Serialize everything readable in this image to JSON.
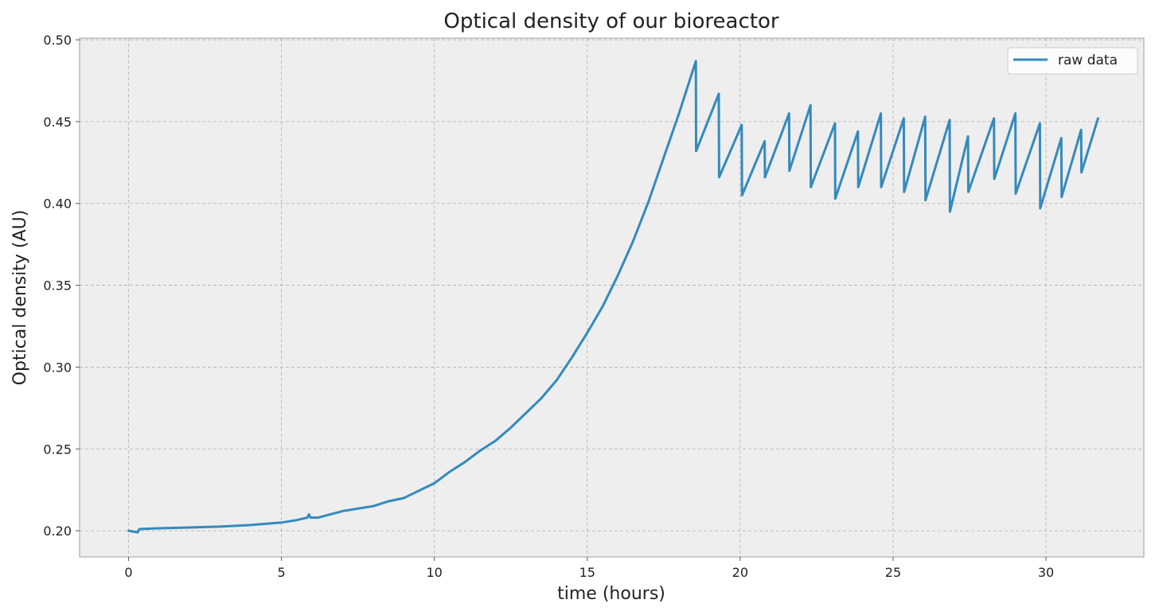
{
  "chart_data": {
    "type": "line",
    "title": "Optical density of our bioreactor",
    "xlabel": "time (hours)",
    "ylabel": "Optical density (AU)",
    "xlim": [
      -1.6,
      33.2
    ],
    "ylim": [
      0.184,
      0.501
    ],
    "xticks": [
      0,
      5,
      10,
      15,
      20,
      25,
      30
    ],
    "yticks": [
      0.2,
      0.25,
      0.3,
      0.35,
      0.4,
      0.45,
      0.5
    ],
    "xtick_labels": [
      "0",
      "5",
      "10",
      "15",
      "20",
      "25",
      "30"
    ],
    "ytick_labels": [
      "0.20",
      "0.25",
      "0.30",
      "0.35",
      "0.40",
      "0.45",
      "0.50"
    ],
    "grid": true,
    "legend_position": "top-right",
    "colors": {
      "series": "#348abd",
      "plot_background": "#eeeeee",
      "frame": "#bcbcbc"
    },
    "series": [
      {
        "name": "raw data",
        "x": [
          0,
          0.3,
          0.35,
          1,
          2,
          3,
          4,
          5,
          5.5,
          5.85,
          5.9,
          5.95,
          6.2,
          7,
          8,
          8.5,
          9,
          10,
          10.5,
          11,
          11.5,
          12,
          12.5,
          13,
          13.5,
          14,
          14.5,
          15,
          15.5,
          16,
          16.5,
          17,
          17.5,
          18,
          18.55,
          18.56,
          19.3,
          19.31,
          20.05,
          20.06,
          20.8,
          20.81,
          21.6,
          21.61,
          22.3,
          22.31,
          23.1,
          23.11,
          23.85,
          23.86,
          24.6,
          24.61,
          25.35,
          25.36,
          26.05,
          26.06,
          26.85,
          26.86,
          27.45,
          27.46,
          28.3,
          28.31,
          29.0,
          29.01,
          29.8,
          29.81,
          30.5,
          30.51,
          31.15,
          31.16,
          31.7
        ],
        "values": [
          0.2,
          0.199,
          0.201,
          0.2015,
          0.202,
          0.2025,
          0.2035,
          0.205,
          0.2065,
          0.208,
          0.21,
          0.208,
          0.208,
          0.212,
          0.215,
          0.218,
          0.22,
          0.229,
          0.236,
          0.242,
          0.249,
          0.255,
          0.263,
          0.272,
          0.281,
          0.292,
          0.306,
          0.321,
          0.337,
          0.356,
          0.377,
          0.401,
          0.428,
          0.455,
          0.487,
          0.432,
          0.467,
          0.416,
          0.448,
          0.405,
          0.438,
          0.416,
          0.455,
          0.42,
          0.46,
          0.41,
          0.449,
          0.403,
          0.444,
          0.41,
          0.455,
          0.41,
          0.452,
          0.407,
          0.453,
          0.402,
          0.451,
          0.395,
          0.441,
          0.407,
          0.452,
          0.415,
          0.455,
          0.406,
          0.449,
          0.397,
          0.44,
          0.404,
          0.445,
          0.419,
          0.452
        ]
      }
    ]
  }
}
